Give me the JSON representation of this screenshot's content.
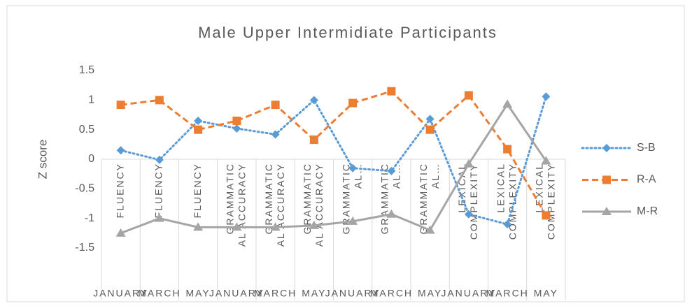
{
  "chart_data": {
    "type": "line",
    "title": "Male Upper Intermidiate Participants",
    "y_label": "Z score",
    "categories": [
      "JANUARY",
      "MARCH",
      "MAY",
      "JANUARY",
      "MARCH",
      "MAY",
      "JANUARY",
      "MARCH",
      "MAY",
      "JANUARY",
      "MARCH",
      "MAY"
    ],
    "category_groups": [
      [
        "FLUENCY"
      ],
      [
        "FLUENCY"
      ],
      [
        "FLUENCY"
      ],
      [
        "GRAMMATIC",
        "AL ACCURACY"
      ],
      [
        "GRAMMATIC",
        "AL ACCURACY"
      ],
      [
        "GRAMMATIC",
        "AL ACCURACY"
      ],
      [
        "GRAMMATIC",
        "AL…"
      ],
      [
        "GRAMMATIC",
        "AL…"
      ],
      [
        "GRAMMATIC",
        "AL…"
      ],
      [
        "LEXICAL",
        "COMPLEXITY"
      ],
      [
        "LEXICAL",
        "COMPLEXITY"
      ],
      [
        "LEXICAL",
        "COMPLEXITY"
      ]
    ],
    "series": [
      {
        "name": "S-B",
        "color": "#5b9bd5",
        "line_style": "dotted",
        "marker": "diamond",
        "values": [
          0.15,
          -0.01,
          0.65,
          0.52,
          0.42,
          1.0,
          -0.15,
          -0.2,
          0.68,
          -0.93,
          -1.1,
          1.06
        ]
      },
      {
        "name": "R-A",
        "color": "#ed7d31",
        "line_style": "dashed",
        "marker": "square",
        "values": [
          0.92,
          1.0,
          0.5,
          0.65,
          0.92,
          0.33,
          0.95,
          1.15,
          0.5,
          1.08,
          0.17,
          -0.95
        ]
      },
      {
        "name": "M-R",
        "color": "#a5a5a5",
        "line_style": "solid",
        "marker": "triangle",
        "values": [
          -1.25,
          -1.0,
          -1.15,
          -1.15,
          -1.15,
          -1.12,
          -1.05,
          -0.93,
          -1.2,
          -0.08,
          0.93,
          -0.03
        ]
      }
    ],
    "ylim": [
      -1.5,
      1.5
    ],
    "yticks": [
      1.5,
      1,
      0.5,
      0,
      -0.5,
      -1,
      -1.5
    ],
    "grid": false,
    "legend": "right"
  }
}
